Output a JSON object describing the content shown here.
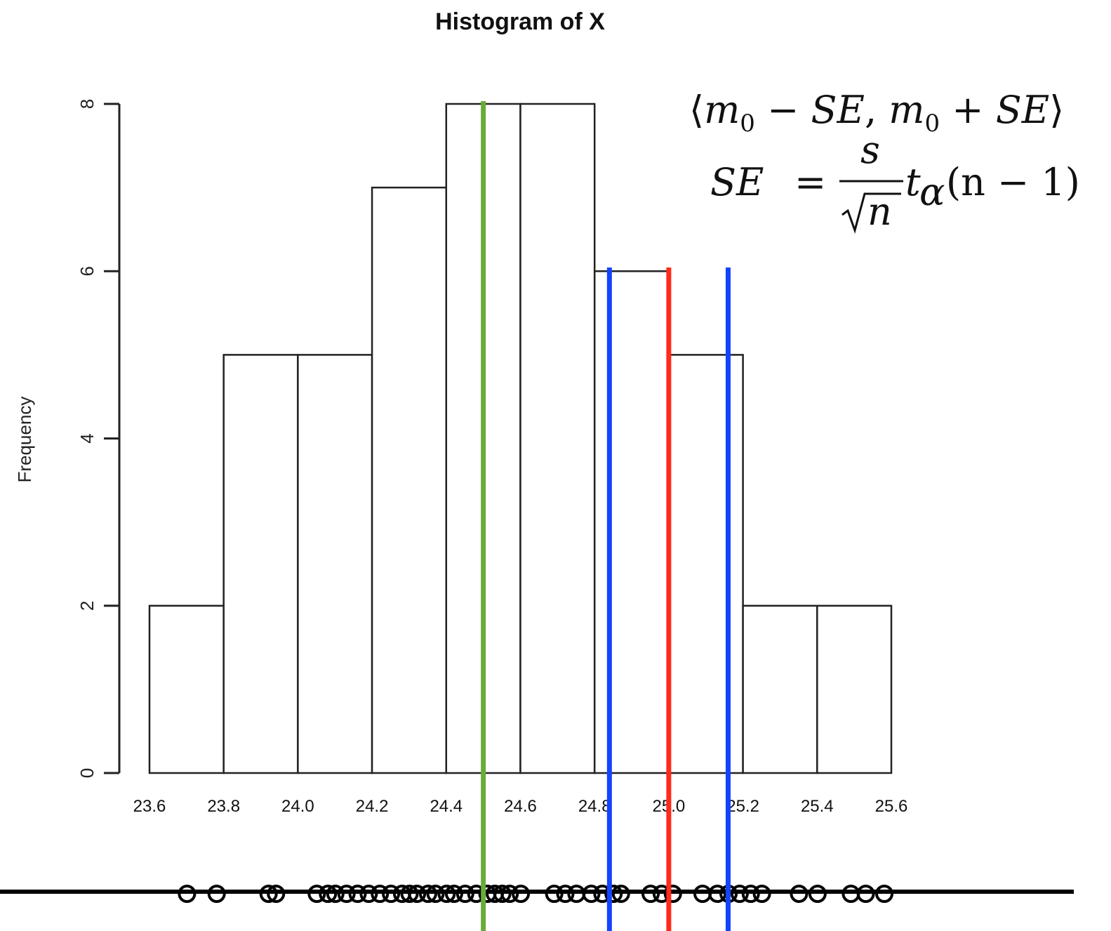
{
  "chart_data": {
    "type": "bar",
    "title": "Histogram of X",
    "xlabel": "",
    "ylabel": "Frequency",
    "bins": [
      {
        "start": 23.6,
        "end": 23.8,
        "count": 2
      },
      {
        "start": 23.8,
        "end": 24.0,
        "count": 5
      },
      {
        "start": 24.0,
        "end": 24.2,
        "count": 5
      },
      {
        "start": 24.2,
        "end": 24.4,
        "count": 7
      },
      {
        "start": 24.4,
        "end": 24.6,
        "count": 8
      },
      {
        "start": 24.6,
        "end": 24.8,
        "count": 8
      },
      {
        "start": 24.8,
        "end": 25.0,
        "count": 6
      },
      {
        "start": 25.0,
        "end": 25.2,
        "count": 5
      },
      {
        "start": 25.2,
        "end": 25.4,
        "count": 2
      },
      {
        "start": 25.4,
        "end": 25.6,
        "count": 2
      }
    ],
    "x_tick_labels": [
      "23.6",
      "23.8",
      "24.0",
      "24.2",
      "24.4",
      "24.6",
      "24.8",
      "25.0",
      "25.2",
      "25.4",
      "25.6"
    ],
    "x_ticks": [
      23.6,
      23.8,
      24.0,
      24.2,
      24.4,
      24.6,
      24.8,
      25.0,
      25.2,
      25.4,
      25.6
    ],
    "y_ticks": [
      0,
      2,
      4,
      6,
      8
    ],
    "xlim": [
      23.6,
      25.6
    ],
    "ylim": [
      0,
      8
    ],
    "grid": false,
    "reference_lines": [
      {
        "x": 24.5,
        "color": "#6aaa3a"
      },
      {
        "x": 24.84,
        "color": "#1144ff"
      },
      {
        "x": 25.0,
        "color": "#ff2a1a"
      },
      {
        "x": 25.16,
        "color": "#1144ff"
      }
    ],
    "rug_points": [
      23.65,
      23.73,
      23.87,
      23.89,
      24.0,
      24.03,
      24.05,
      24.08,
      24.11,
      24.14,
      24.17,
      24.2,
      24.23,
      24.25,
      24.27,
      24.3,
      24.32,
      24.35,
      24.37,
      24.4,
      24.43,
      24.46,
      24.48,
      24.5,
      24.52,
      24.55,
      24.64,
      24.67,
      24.7,
      24.74,
      24.77,
      24.8,
      24.82,
      24.9,
      24.93,
      24.96,
      25.04,
      25.08,
      25.11,
      25.14,
      25.17,
      25.2,
      25.3,
      25.35,
      25.44,
      25.48,
      25.53
    ],
    "annotations": {
      "interval": {
        "open": "⟨",
        "m1": "m",
        "sub1": "0",
        "minus": " − ",
        "se1": "SE",
        "comma": ", ",
        "m2": "m",
        "sub2": "0",
        "plus": " + ",
        "se2": "SE",
        "close": "⟩"
      },
      "se_formula": {
        "lhs": "SE",
        "eq": "=",
        "numerator": "s",
        "denominator": "n",
        "t": "t",
        "alpha": "α",
        "args": "(n − 1)"
      }
    }
  }
}
